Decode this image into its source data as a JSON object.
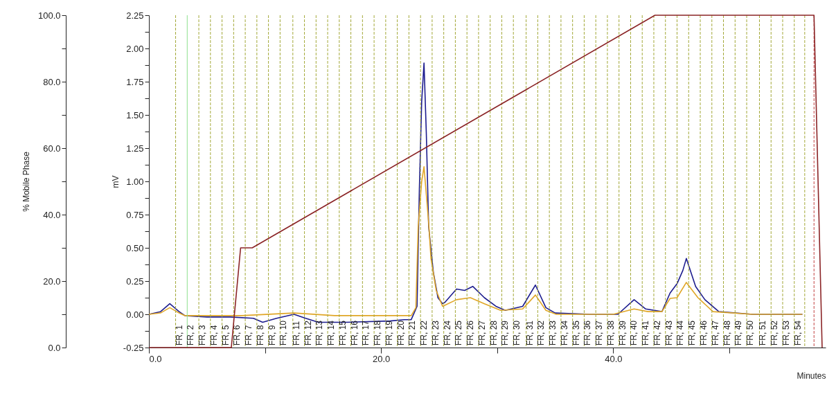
{
  "chart_data": {
    "type": "line",
    "xlabel": "Minutes",
    "ylabel": "mV",
    "y2label": "% Mobile Phase",
    "xlim": [
      0,
      58.3
    ],
    "xticks": [
      {
        "value": 0,
        "label": "0.0"
      },
      {
        "value": 10,
        "label": null
      },
      {
        "value": 20,
        "label": "20.0"
      },
      {
        "value": 30,
        "label": null
      },
      {
        "value": 40,
        "label": "40.0"
      },
      {
        "value": 50,
        "label": null
      }
    ],
    "ylim": [
      -0.25,
      2.25
    ],
    "yticks": [
      {
        "value": -0.25,
        "label": "-0.25"
      },
      {
        "value": -0.125,
        "label": null
      },
      {
        "value": 0,
        "label": "0.00"
      },
      {
        "value": 0.125,
        "label": null
      },
      {
        "value": 0.25,
        "label": "0.25"
      },
      {
        "value": 0.375,
        "label": null
      },
      {
        "value": 0.5,
        "label": "0.50"
      },
      {
        "value": 0.625,
        "label": null
      },
      {
        "value": 0.75,
        "label": "0.75"
      },
      {
        "value": 0.875,
        "label": null
      },
      {
        "value": 1,
        "label": "1.00"
      },
      {
        "value": 1.125,
        "label": null
      },
      {
        "value": 1.25,
        "label": "1.25"
      },
      {
        "value": 1.375,
        "label": null
      },
      {
        "value": 1.5,
        "label": "1.50"
      },
      {
        "value": 1.625,
        "label": null
      },
      {
        "value": 1.75,
        "label": "1.75"
      },
      {
        "value": 1.875,
        "label": null
      },
      {
        "value": 2,
        "label": "2.00"
      },
      {
        "value": 2.125,
        "label": null
      },
      {
        "value": 2.25,
        "label": "2.25"
      }
    ],
    "y2lim": [
      0,
      100
    ],
    "y2ticks": [
      {
        "value": 0,
        "label": "0.0"
      },
      {
        "value": 10,
        "label": null
      },
      {
        "value": 20,
        "label": "20.0"
      },
      {
        "value": 30,
        "label": null
      },
      {
        "value": 40,
        "label": "40.0"
      },
      {
        "value": 50,
        "label": null
      },
      {
        "value": 60,
        "label": "60.0"
      },
      {
        "value": 70,
        "label": null
      },
      {
        "value": 80,
        "label": "80.0"
      },
      {
        "value": 90,
        "label": null
      },
      {
        "value": 100,
        "label": "100.0"
      }
    ],
    "series": [
      {
        "color": "#1c1c8e",
        "x": [
          0,
          1.0,
          1.8,
          2.6,
          3.1,
          5,
          7,
          9,
          9.8,
          11,
          12.5,
          13.5,
          14.6,
          17,
          20.8,
          22.0,
          22.6,
          23.1,
          23.3,
          23.5,
          23.7,
          23.9,
          24.1,
          24.5,
          24.9,
          25.3,
          25.5,
          26.5,
          27.2,
          27.9,
          28.9,
          29.9,
          30.7,
          32.2,
          33.3,
          34.2,
          35.0,
          38,
          40.4,
          41.8,
          42.8,
          44.2,
          44.9,
          45.5,
          46.0,
          46.3,
          47.1,
          47.9,
          49.1,
          52,
          56.3
        ],
        "values": [
          0,
          0.02,
          0.08,
          0.02,
          -0.01,
          -0.02,
          -0.02,
          -0.03,
          -0.06,
          -0.03,
          0.0,
          -0.03,
          -0.06,
          -0.06,
          -0.05,
          -0.04,
          -0.04,
          0.06,
          0.94,
          1.6,
          1.89,
          1.36,
          0.66,
          0.32,
          0.125,
          0.08,
          0.09,
          0.19,
          0.18,
          0.21,
          0.125,
          0.06,
          0.03,
          0.06,
          0.22,
          0.05,
          0.01,
          0.0,
          0.0,
          0.11,
          0.04,
          0.02,
          0.16,
          0.23,
          0.33,
          0.42,
          0.21,
          0.11,
          0.02,
          0.0,
          0.0
        ]
      },
      {
        "color": "#e0a626",
        "x": [
          0,
          1.0,
          1.8,
          2.6,
          3.1,
          8,
          12.5,
          16,
          20,
          22.6,
          23.0,
          23.2,
          23.5,
          23.7,
          23.9,
          24.1,
          24.3,
          24.75,
          25.3,
          26.5,
          27.7,
          28.9,
          30.3,
          32.2,
          33.3,
          34.2,
          35.1,
          40,
          41.8,
          43,
          44.2,
          44.9,
          45.5,
          46.3,
          47.3,
          48.6,
          52,
          56.3
        ],
        "values": [
          0,
          0.01,
          0.05,
          0.01,
          -0.01,
          -0.01,
          0.01,
          -0.01,
          -0.01,
          -0.01,
          0.05,
          0.66,
          1.0,
          1.11,
          0.9,
          0.69,
          0.42,
          0.18,
          0.06,
          0.11,
          0.125,
          0.08,
          0.03,
          0.04,
          0.145,
          0.03,
          0.0,
          0.0,
          0.04,
          0.02,
          0.02,
          0.12,
          0.125,
          0.24,
          0.125,
          0.02,
          0.0,
          0.0
        ]
      },
      {
        "color": "#8b2426",
        "axis": "y2",
        "x": [
          0,
          7.1,
          7.9,
          8.9,
          43.6,
          57.3,
          58.0
        ],
        "values": [
          0,
          0,
          30,
          30,
          100,
          100,
          0
        ]
      }
    ],
    "ref_lines": [
      {
        "axis": "x",
        "value": 2.3,
        "label": "FR, 1",
        "color": "#a3a838",
        "line_style": "dashed"
      },
      {
        "axis": "x",
        "value": 3.3,
        "label": "FR, 2",
        "color": "#8ee08e",
        "line_style": "solid"
      },
      {
        "axis": "x",
        "value": 4.3,
        "label": "FR, 3",
        "color": "#a3a838",
        "line_style": "dashed"
      },
      {
        "axis": "x",
        "value": 5.3,
        "label": "FR, 4",
        "color": "#a3a838",
        "line_style": "dashed"
      },
      {
        "axis": "x",
        "value": 6.3,
        "label": "FR, 5",
        "color": "#a3a838",
        "line_style": "dashed"
      },
      {
        "axis": "x",
        "value": 7.3,
        "label": "FR, 6",
        "color": "#a3a838",
        "line_style": "dashed"
      },
      {
        "axis": "x",
        "value": 8.3,
        "label": "FR, 7",
        "color": "#a3a838",
        "line_style": "dashed"
      },
      {
        "axis": "x",
        "value": 9.3,
        "label": "FR, 8",
        "color": "#a3a838",
        "line_style": "dashed"
      },
      {
        "axis": "x",
        "value": 10.3,
        "label": "FR, 9",
        "color": "#a3a838",
        "line_style": "dashed"
      },
      {
        "axis": "x",
        "value": 11.3,
        "label": "FR, 10",
        "color": "#a3a838",
        "line_style": "dashed"
      },
      {
        "axis": "x",
        "value": 12.4,
        "label": "FR, 11",
        "color": "#a3a838",
        "line_style": "dashed"
      },
      {
        "axis": "x",
        "value": 13.4,
        "label": "FR, 12",
        "color": "#a3a838",
        "line_style": "dashed"
      },
      {
        "axis": "x",
        "value": 14.4,
        "label": "FR, 13",
        "color": "#a3a838",
        "line_style": "dashed"
      },
      {
        "axis": "x",
        "value": 15.4,
        "label": "FR, 14",
        "color": "#a3a838",
        "line_style": "dashed"
      },
      {
        "axis": "x",
        "value": 16.4,
        "label": "FR, 15",
        "color": "#a3a838",
        "line_style": "dashed"
      },
      {
        "axis": "x",
        "value": 17.4,
        "label": "FR, 16",
        "color": "#a3a838",
        "line_style": "dashed"
      },
      {
        "axis": "x",
        "value": 18.4,
        "label": "FR, 17",
        "color": "#a3a838",
        "line_style": "dashed"
      },
      {
        "axis": "x",
        "value": 19.4,
        "label": "FR, 18",
        "color": "#a3a838",
        "line_style": "dashed"
      },
      {
        "axis": "x",
        "value": 20.4,
        "label": "FR, 19",
        "color": "#a3a838",
        "line_style": "dashed"
      },
      {
        "axis": "x",
        "value": 21.4,
        "label": "FR, 20",
        "color": "#a3a838",
        "line_style": "dashed"
      },
      {
        "axis": "x",
        "value": 22.4,
        "label": "FR, 21",
        "color": "#a3a838",
        "line_style": "dashed"
      },
      {
        "axis": "x",
        "value": 23.4,
        "label": "FR, 22",
        "color": "#a3a838",
        "line_style": "dashed"
      },
      {
        "axis": "x",
        "value": 24.4,
        "label": "FR, 23",
        "color": "#a3a838",
        "line_style": "dashed"
      },
      {
        "axis": "x",
        "value": 25.4,
        "label": "FR, 24",
        "color": "#a3a838",
        "line_style": "dashed"
      },
      {
        "axis": "x",
        "value": 26.4,
        "label": "FR, 25",
        "color": "#a3a838",
        "line_style": "dashed"
      },
      {
        "axis": "x",
        "value": 27.4,
        "label": "FR, 26",
        "color": "#a3a838",
        "line_style": "dashed"
      },
      {
        "axis": "x",
        "value": 28.4,
        "label": "FR, 27",
        "color": "#a3a838",
        "line_style": "dashed"
      },
      {
        "axis": "x",
        "value": 29.4,
        "label": "FR, 28",
        "color": "#a3a838",
        "line_style": "dashed"
      },
      {
        "axis": "x",
        "value": 30.4,
        "label": "FR, 29",
        "color": "#a3a838",
        "line_style": "dashed"
      },
      {
        "axis": "x",
        "value": 31.4,
        "label": "FR, 30",
        "color": "#a3a838",
        "line_style": "dashed"
      },
      {
        "axis": "x",
        "value": 32.5,
        "label": "FR, 31",
        "color": "#a3a838",
        "line_style": "dashed"
      },
      {
        "axis": "x",
        "value": 33.5,
        "label": "FR, 32",
        "color": "#a3a838",
        "line_style": "dashed"
      },
      {
        "axis": "x",
        "value": 34.5,
        "label": "FR, 33",
        "color": "#a3a838",
        "line_style": "dashed"
      },
      {
        "axis": "x",
        "value": 35.5,
        "label": "FR, 34",
        "color": "#a3a838",
        "line_style": "dashed"
      },
      {
        "axis": "x",
        "value": 36.5,
        "label": "FR, 35",
        "color": "#a3a838",
        "line_style": "dashed"
      },
      {
        "axis": "x",
        "value": 37.5,
        "label": "FR, 36",
        "color": "#a3a838",
        "line_style": "dashed"
      },
      {
        "axis": "x",
        "value": 38.5,
        "label": "FR, 37",
        "color": "#a3a838",
        "line_style": "dashed"
      },
      {
        "axis": "x",
        "value": 39.5,
        "label": "FR, 38",
        "color": "#a3a838",
        "line_style": "dashed"
      },
      {
        "axis": "x",
        "value": 40.5,
        "label": "FR, 39",
        "color": "#a3a838",
        "line_style": "dashed"
      },
      {
        "axis": "x",
        "value": 41.5,
        "label": "FR, 40",
        "color": "#a3a838",
        "line_style": "dashed"
      },
      {
        "axis": "x",
        "value": 42.5,
        "label": "FR, 41",
        "color": "#a3a838",
        "line_style": "dashed"
      },
      {
        "axis": "x",
        "value": 43.5,
        "label": "FR, 42",
        "color": "#a3a838",
        "line_style": "dashed"
      },
      {
        "axis": "x",
        "value": 44.5,
        "label": "FR, 43",
        "color": "#a3a838",
        "line_style": "dashed"
      },
      {
        "axis": "x",
        "value": 45.5,
        "label": "FR, 44",
        "color": "#a3a838",
        "line_style": "dashed"
      },
      {
        "axis": "x",
        "value": 46.5,
        "label": "FR, 45",
        "color": "#a3a838",
        "line_style": "dashed"
      },
      {
        "axis": "x",
        "value": 47.5,
        "label": "FR, 46",
        "color": "#a3a838",
        "line_style": "dashed"
      },
      {
        "axis": "x",
        "value": 48.5,
        "label": "FR, 47",
        "color": "#a3a838",
        "line_style": "dashed"
      },
      {
        "axis": "x",
        "value": 49.5,
        "label": "FR, 48",
        "color": "#a3a838",
        "line_style": "dashed"
      },
      {
        "axis": "x",
        "value": 50.5,
        "label": "FR, 49",
        "color": "#a3a838",
        "line_style": "dashed"
      },
      {
        "axis": "x",
        "value": 51.5,
        "label": "FR, 50",
        "color": "#a3a838",
        "line_style": "dashed"
      },
      {
        "axis": "x",
        "value": 52.6,
        "label": "FR, 51",
        "color": "#a3a838",
        "line_style": "dashed"
      },
      {
        "axis": "x",
        "value": 53.6,
        "label": "FR, 52",
        "color": "#a3a838",
        "line_style": "dashed"
      },
      {
        "axis": "x",
        "value": 54.6,
        "label": "FR, 53",
        "color": "#a3a838",
        "line_style": "dashed"
      },
      {
        "axis": "x",
        "value": 55.6,
        "label": "FR, 54",
        "color": "#a3a838",
        "line_style": "dashed"
      },
      {
        "axis": "x",
        "value": 56.5,
        "color": "#a3a838",
        "line_style": "dashed"
      },
      {
        "axis": "x",
        "value": 57.3,
        "color": "#c24040",
        "line_style": "dashed"
      }
    ]
  }
}
